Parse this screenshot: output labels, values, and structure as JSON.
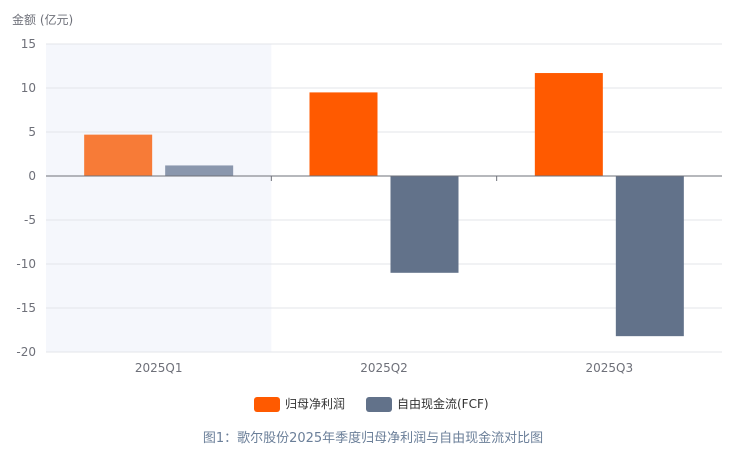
{
  "chart_data": {
    "type": "bar",
    "title": "",
    "ylabel": "金额 (亿元)",
    "xlabel": "",
    "categories": [
      "2025Q1",
      "2025Q2",
      "2025Q3"
    ],
    "series": [
      {
        "name": "归母净利润",
        "values": [
          4.7,
          9.5,
          11.7
        ],
        "color": "#ff5a00"
      },
      {
        "name": "自由现金流(FCF)",
        "values": [
          1.2,
          -11.0,
          -18.2
        ],
        "color": "#62728a"
      }
    ],
    "ylim": [
      -20,
      15
    ],
    "yticks": [
      15,
      10,
      5,
      0,
      -5,
      -10,
      -15,
      -20
    ],
    "grid": true,
    "legend": "bottom-center",
    "highlighted_category": "2025Q1"
  },
  "caption": "图1：歌尔股份2025年季度归母净利润与自由现金流对比图"
}
